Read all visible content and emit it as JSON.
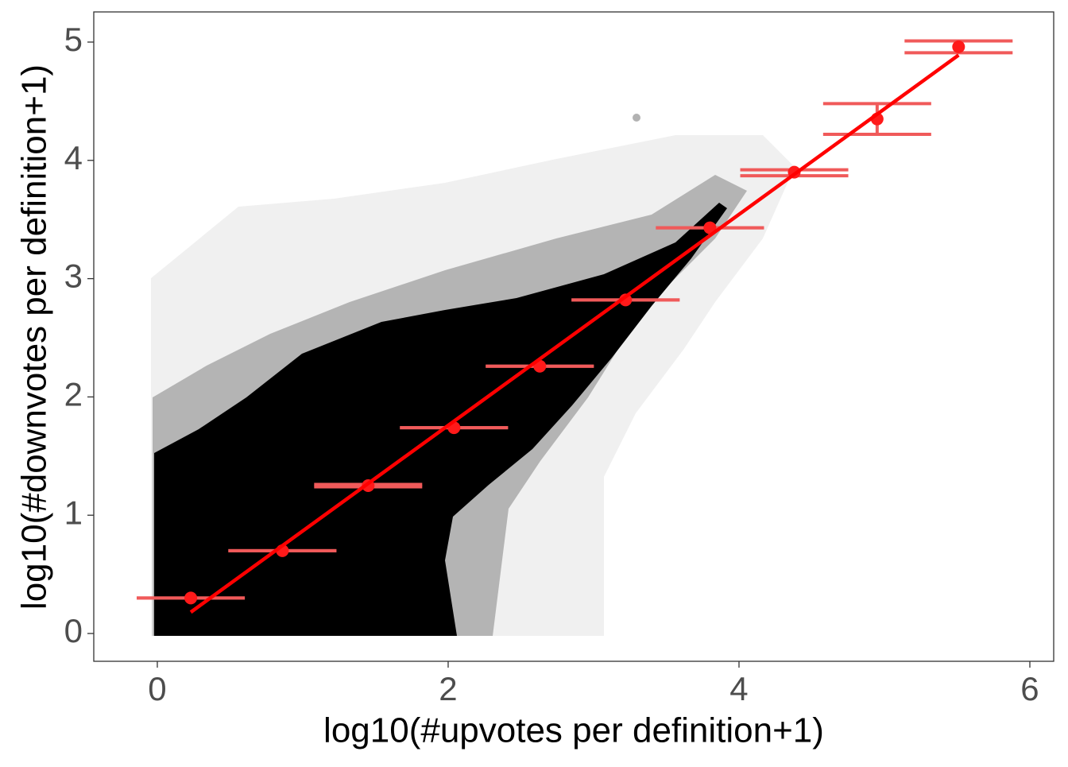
{
  "chart_data": {
    "type": "scatter",
    "x_label": "log10(#upvotes per definition+1)",
    "y_label": "log10(#downvotes per definition+1)",
    "xlim": [
      -0.437,
      6.164
    ],
    "ylim": [
      -0.235,
      5.255
    ],
    "xticks": [
      0,
      2,
      4,
      6
    ],
    "yticks": [
      0,
      1,
      2,
      3,
      4,
      5
    ],
    "grid": false,
    "series": [
      {
        "color": "#ff1a1a",
        "bar_color": "#f05a5a",
        "x": [
          0.23,
          0.86,
          1.45,
          2.04,
          2.63,
          3.22,
          3.8,
          4.38,
          4.95,
          5.51
        ],
        "y": [
          0.3,
          0.7,
          1.25,
          1.74,
          2.26,
          2.82,
          3.43,
          3.9,
          4.35,
          4.96
        ],
        "y_low": [
          0.3,
          0.7,
          1.24,
          1.74,
          2.26,
          2.82,
          3.43,
          3.87,
          4.22,
          4.91
        ],
        "y_high": [
          0.3,
          0.7,
          1.26,
          1.74,
          2.26,
          2.82,
          3.43,
          3.92,
          4.48,
          5.01
        ]
      }
    ],
    "fit": {
      "color": "#ff0000",
      "x": [
        0.23,
        5.51
      ],
      "y": [
        0.18,
        4.89
      ]
    }
  }
}
